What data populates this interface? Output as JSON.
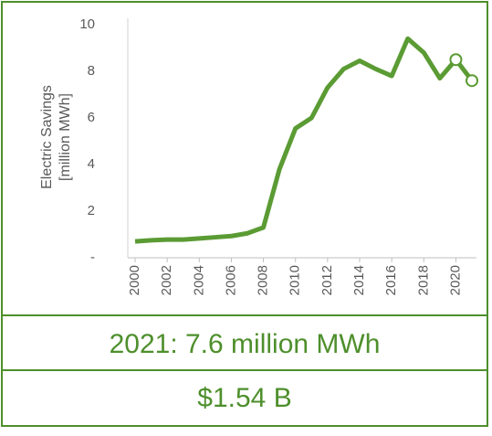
{
  "chart_data": {
    "type": "line",
    "ylabel": [
      "Electric Savings",
      "[million MWh]"
    ],
    "x": [
      2000,
      2001,
      2002,
      2003,
      2004,
      2005,
      2006,
      2007,
      2008,
      2009,
      2010,
      2011,
      2012,
      2013,
      2014,
      2015,
      2016,
      2017,
      2018,
      2019,
      2020,
      2021
    ],
    "series": [
      {
        "color": "#5b9b34",
        "values": [
          0.7,
          0.75,
          0.78,
          0.78,
          0.83,
          0.88,
          0.93,
          1.05,
          1.3,
          3.8,
          5.55,
          6.0,
          7.3,
          8.1,
          8.45,
          8.1,
          7.8,
          9.4,
          8.8,
          7.7,
          8.5,
          7.6
        ]
      }
    ],
    "highlight": [
      2020,
      2021
    ],
    "xlim": [
      2000,
      2021
    ],
    "xticks": [
      2000,
      2002,
      2004,
      2006,
      2008,
      2010,
      2012,
      2014,
      2016,
      2018,
      2020
    ],
    "ylim": [
      0,
      10
    ],
    "yticks": [
      {
        "value": 0,
        "label": "-"
      },
      2,
      4,
      6,
      8,
      10
    ],
    "grid": false
  },
  "stats": [
    "2021: 7.6 million MWh",
    "$1.54 B"
  ]
}
